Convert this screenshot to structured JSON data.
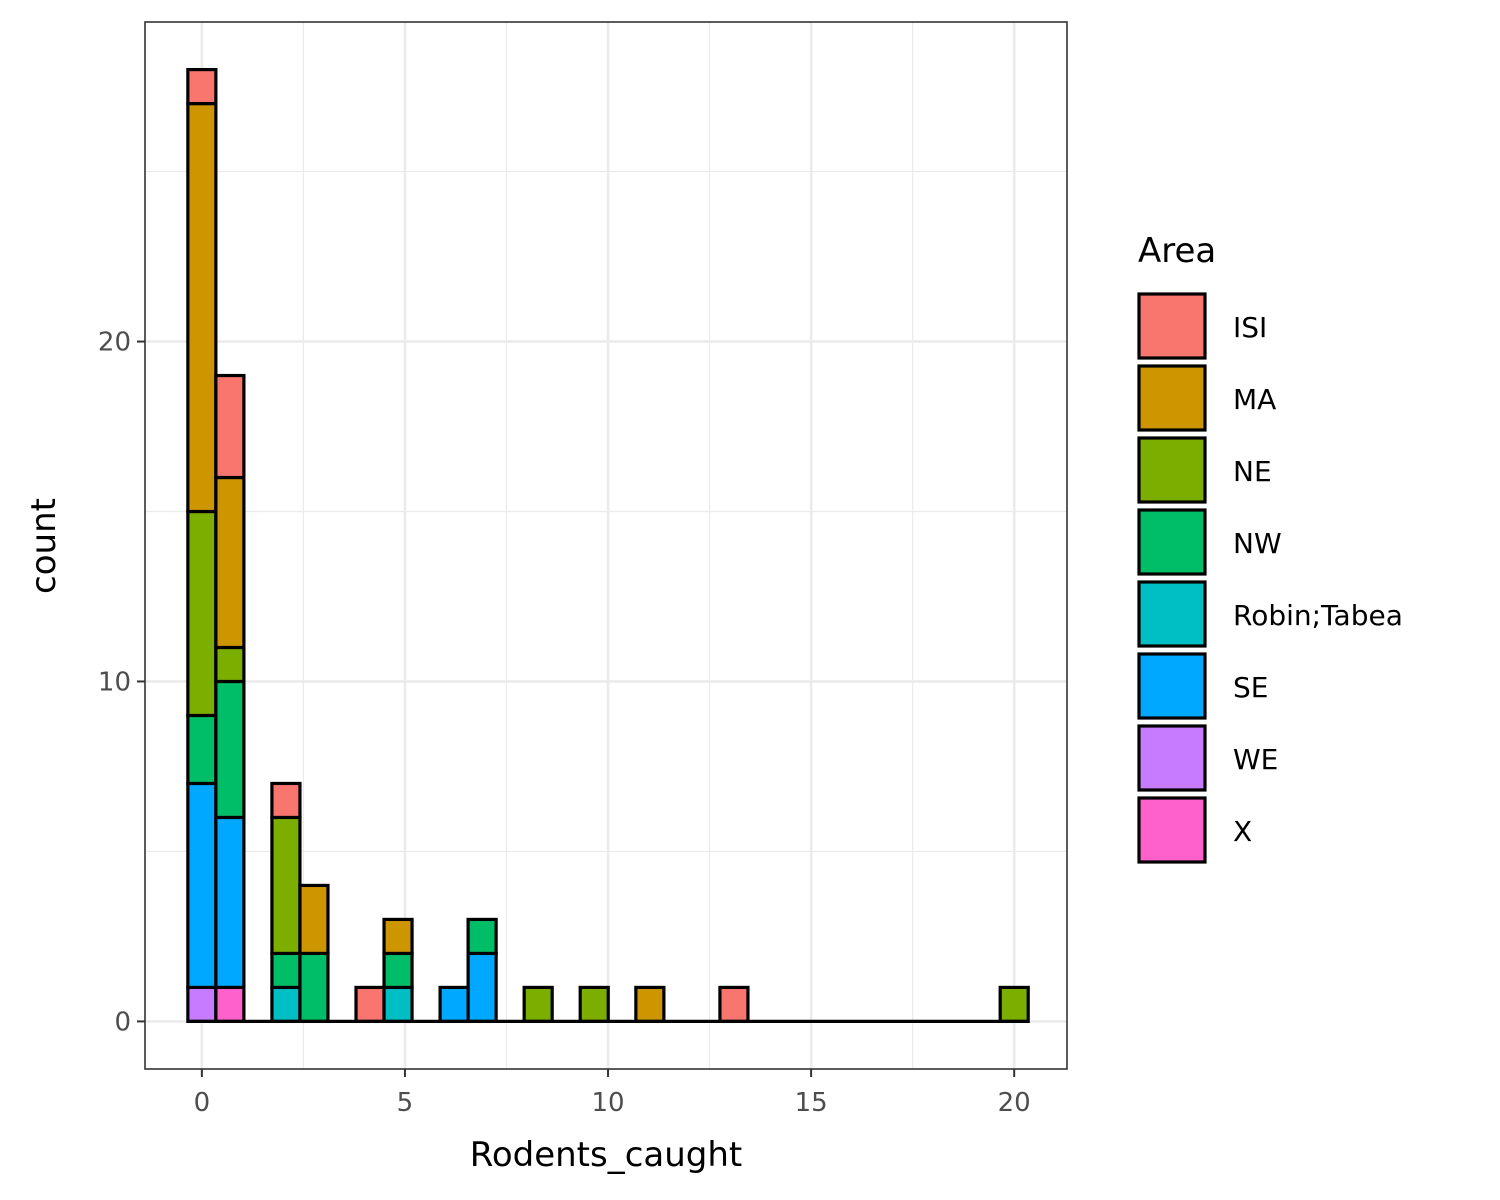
{
  "chart_data": {
    "type": "bar",
    "subtype": "stacked-histogram",
    "xlabel": "Rodents_caught",
    "ylabel": "count",
    "x_ticks": [
      "0",
      "5",
      "10",
      "15",
      "20"
    ],
    "y_ticks": [
      "0",
      "10",
      "20"
    ],
    "xlim": [
      -1.4,
      21.3
    ],
    "ylim": [
      -1.4,
      29.4
    ],
    "bin_width": 0.69,
    "grid": true,
    "legend": {
      "title": "Area",
      "position": "right",
      "entries": [
        "ISI",
        "MA",
        "NE",
        "NW",
        "Robin;Tabea",
        "SE",
        "WE",
        "X"
      ]
    },
    "colors": {
      "ISI": "#F8766D",
      "MA": "#CD9600",
      "NE": "#7CAE00",
      "NW": "#00BE67",
      "Robin;Tabea": "#00BFC4",
      "SE": "#00A9FF",
      "WE": "#C77CFF",
      "X": "#FF61CC"
    },
    "stack_order": [
      "WE",
      "X",
      "SE",
      "Robin;Tabea",
      "NW",
      "NE",
      "MA",
      "ISI"
    ],
    "bins": [
      {
        "x": 0,
        "counts": {
          "WE": 1,
          "SE": 6,
          "NW": 2,
          "NE": 6,
          "MA": 12,
          "ISI": 1
        }
      },
      {
        "x": 0.69,
        "counts": {
          "X": 1,
          "SE": 5,
          "NW": 4,
          "NE": 1,
          "MA": 5,
          "ISI": 3
        }
      },
      {
        "x": 2.07,
        "counts": {
          "Robin;Tabea": 1,
          "NW": 1,
          "NE": 4,
          "ISI": 1
        }
      },
      {
        "x": 2.76,
        "counts": {
          "NW": 2,
          "MA": 2
        }
      },
      {
        "x": 4.14,
        "counts": {
          "ISI": 1
        }
      },
      {
        "x": 4.83,
        "counts": {
          "Robin;Tabea": 1,
          "NW": 1,
          "MA": 1
        }
      },
      {
        "x": 6.21,
        "counts": {
          "SE": 1
        }
      },
      {
        "x": 6.9,
        "counts": {
          "SE": 2,
          "NW": 1
        }
      },
      {
        "x": 8.28,
        "counts": {
          "NE": 1
        }
      },
      {
        "x": 9.66,
        "counts": {
          "NE": 1
        }
      },
      {
        "x": 11.03,
        "counts": {
          "MA": 1
        }
      },
      {
        "x": 13.1,
        "counts": {
          "ISI": 1
        }
      },
      {
        "x": 20.0,
        "counts": {
          "NE": 1
        }
      }
    ]
  }
}
